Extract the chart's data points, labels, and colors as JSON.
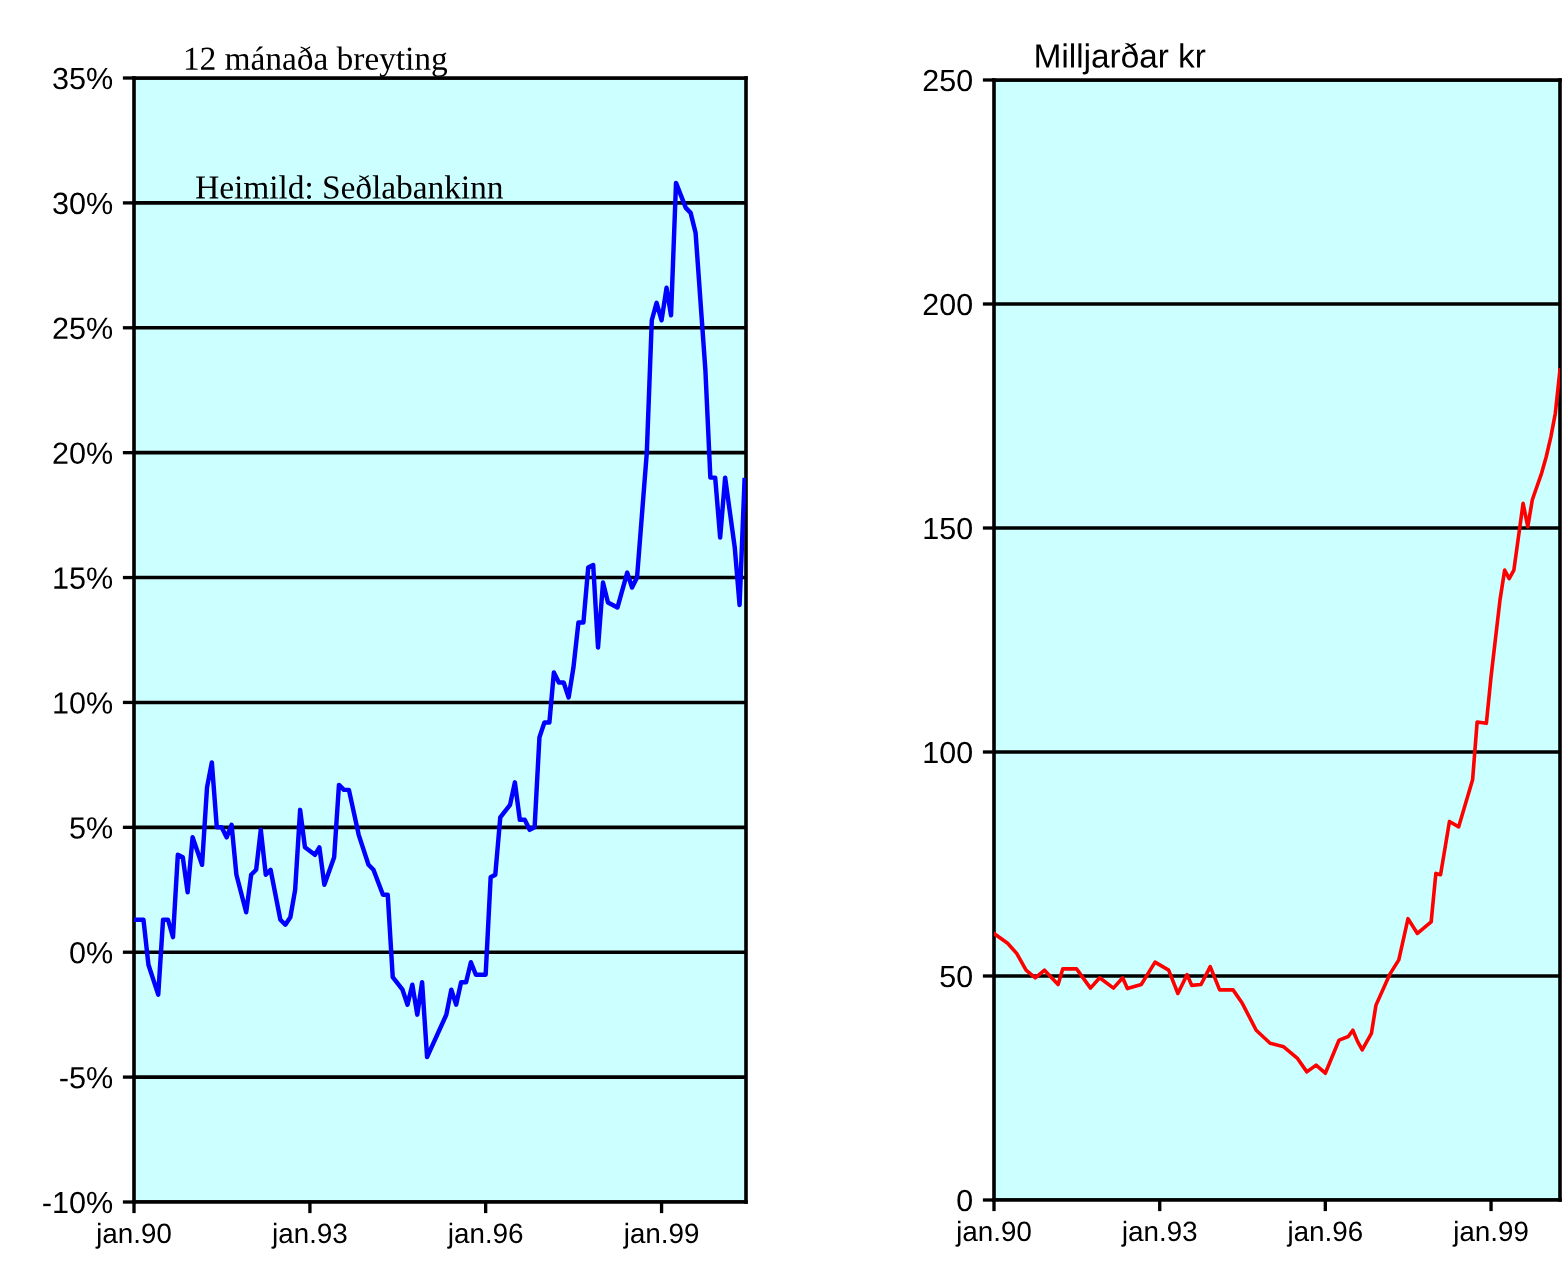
{
  "chart_data": [
    {
      "type": "line",
      "title": "12 mánaða breyting",
      "annotations": [
        "Heimild: Seðlabankinn"
      ],
      "grid": "y",
      "xlim": [
        "1990-01",
        "2000-06-10"
      ],
      "ylim": [
        -10,
        35
      ],
      "xticks": [
        {
          "value": "1990-01",
          "label": "jan.90"
        },
        {
          "value": "1993-01",
          "label": "jan.93"
        },
        {
          "value": "1996-01",
          "label": "jan.96"
        },
        {
          "value": "1999-01",
          "label": "jan.99"
        }
      ],
      "yticks": [
        {
          "value": -10,
          "label": "-10%"
        },
        {
          "value": -5,
          "label": "-5%"
        },
        {
          "value": 0,
          "label": "0%"
        },
        {
          "value": 5,
          "label": "5%"
        },
        {
          "value": 10,
          "label": "10%"
        },
        {
          "value": 15,
          "label": "15%"
        },
        {
          "value": 20,
          "label": "20%"
        },
        {
          "value": 25,
          "label": "25%"
        },
        {
          "value": 30,
          "label": "30%"
        },
        {
          "value": 35,
          "label": "35%"
        }
      ],
      "series": [
        {
          "color": "#0000ff",
          "x": [
            "1990-01",
            "1990-03",
            "1990-04",
            "1990-06",
            "1990-07",
            "1990-08",
            "1990-09",
            "1990-10",
            "1990-11",
            "1990-12",
            "1991-01",
            "1991-03",
            "1991-04",
            "1991-05",
            "1991-06",
            "1991-07",
            "1991-08",
            "1991-09",
            "1991-10",
            "1991-12",
            "1992-01",
            "1992-02",
            "1992-03",
            "1992-04",
            "1992-05",
            "1992-07",
            "1992-08",
            "1992-09",
            "1992-10",
            "1992-11",
            "1992-12",
            "1993-02",
            "1993-03",
            "1993-04",
            "1993-06",
            "1993-07",
            "1993-08",
            "1993-09",
            "1993-11",
            "1994-01",
            "1994-02",
            "1994-04",
            "1994-05",
            "1994-06",
            "1994-08",
            "1994-09",
            "1994-10",
            "1994-11",
            "1994-12",
            "1995-01",
            "1995-05",
            "1995-06",
            "1995-07",
            "1995-08",
            "1995-09",
            "1995-10",
            "1995-11",
            "1996-01",
            "1996-02",
            "1996-03",
            "1996-04",
            "1996-06",
            "1996-07",
            "1996-08",
            "1996-09",
            "1996-10",
            "1996-11",
            "1996-12",
            "1997-01",
            "1997-02",
            "1997-03",
            "1997-04",
            "1997-05",
            "1997-06",
            "1997-07",
            "1997-08",
            "1997-09",
            "1997-10",
            "1997-11",
            "1997-12",
            "1998-01",
            "1998-02",
            "1998-04",
            "1998-06",
            "1998-07",
            "1998-08",
            "1998-10",
            "1998-11",
            "1998-12",
            "1999-01",
            "1999-02",
            "1999-03",
            "1999-04",
            "1999-06",
            "1999-07",
            "1999-08",
            "1999-10",
            "1999-11",
            "1999-12",
            "2000-01",
            "2000-02",
            "2000-04",
            "2000-05",
            "2000-06"
          ],
          "values": [
            1.3,
            1.3,
            -0.5,
            -1.7,
            1.3,
            1.3,
            0.6,
            3.9,
            3.8,
            2.4,
            4.6,
            3.5,
            6.6,
            7.6,
            5.0,
            5.0,
            4.6,
            5.1,
            3.1,
            1.6,
            3.1,
            3.3,
            4.9,
            3.1,
            3.3,
            1.3,
            1.1,
            1.4,
            2.5,
            5.7,
            4.2,
            3.9,
            4.2,
            2.7,
            3.8,
            6.7,
            6.5,
            6.5,
            4.7,
            3.5,
            3.3,
            2.3,
            2.3,
            -1.0,
            -1.5,
            -2.1,
            -1.3,
            -2.5,
            -1.2,
            -4.2,
            -2.5,
            -1.5,
            -2.1,
            -1.2,
            -1.2,
            -0.4,
            -0.9,
            -0.9,
            3.0,
            3.1,
            5.4,
            5.9,
            6.8,
            5.3,
            5.3,
            4.9,
            5.0,
            8.6,
            9.2,
            9.2,
            11.2,
            10.8,
            10.8,
            10.2,
            11.4,
            13.2,
            13.2,
            15.4,
            15.5,
            12.2,
            14.8,
            14.0,
            13.8,
            15.2,
            14.6,
            15.0,
            20.0,
            25.3,
            26.0,
            25.3,
            26.6,
            25.5,
            30.8,
            29.8,
            29.6,
            28.8,
            23.3,
            19.0,
            19.0,
            16.6,
            19.0,
            16.2,
            13.9,
            18.9
          ]
        }
      ]
    },
    {
      "type": "line",
      "ylabel": "Milljarðar kr",
      "grid": "y",
      "xlim": [
        "1990-01",
        "2000-04"
      ],
      "ylim": [
        0,
        250
      ],
      "xticks": [
        {
          "value": "1990-01",
          "label": "jan.90"
        },
        {
          "value": "1993-01",
          "label": "jan.93"
        },
        {
          "value": "1996-01",
          "label": "jan.96"
        },
        {
          "value": "1999-01",
          "label": "jan.99"
        }
      ],
      "yticks": [
        0,
        50,
        100,
        150,
        200,
        250
      ],
      "series": [
        {
          "color": "#ff0000",
          "x": [
            "1990-01",
            "1990-04",
            "1990-06",
            "1990-08",
            "1990-10",
            "1990-12",
            "1991-03",
            "1991-04",
            "1991-07",
            "1991-10",
            "1991-12",
            "1992-03",
            "1992-05",
            "1992-06",
            "1992-09",
            "1992-12",
            "1993-03",
            "1993-05",
            "1993-07",
            "1993-08",
            "1993-10",
            "1993-12",
            "1994-02",
            "1994-05",
            "1994-07",
            "1994-10",
            "1995-01",
            "1995-04",
            "1995-07",
            "1995-09",
            "1995-11",
            "1996-01",
            "1996-04",
            "1996-06",
            "1996-07",
            "1996-08",
            "1996-09",
            "1996-11",
            "1996-12",
            "1997-03",
            "1997-05",
            "1997-07",
            "1997-09",
            "1997-12",
            "1998-01",
            "1998-02",
            "1998-04",
            "1998-06",
            "1998-09",
            "1998-10",
            "1998-12",
            "1999-01",
            "1999-03",
            "1999-04",
            "1999-05",
            "1999-06",
            "1999-08",
            "1999-09",
            "1999-10",
            "1999-12",
            "2000-01",
            "2000-02",
            "2000-03",
            "2000-04"
          ],
          "values": [
            59.5,
            57.3,
            55.0,
            51.3,
            49.6,
            51.3,
            48.1,
            51.6,
            51.6,
            47.3,
            49.6,
            47.3,
            49.6,
            47.2,
            48.1,
            53.1,
            51.3,
            46.1,
            50.3,
            47.9,
            48.1,
            52.1,
            46.9,
            46.9,
            43.9,
            37.9,
            35.0,
            34.2,
            31.6,
            28.6,
            30.1,
            28.3,
            35.7,
            36.5,
            37.9,
            35.4,
            33.5,
            37.2,
            43.5,
            50.3,
            53.6,
            62.8,
            59.5,
            62.1,
            72.9,
            72.6,
            84.5,
            83.3,
            93.8,
            106.7,
            106.4,
            116.8,
            133.9,
            140.6,
            138.7,
            140.6,
            155.5,
            150.3,
            156.3,
            162.2,
            165.9,
            170.4,
            175.6,
            185.3
          ]
        }
      ]
    }
  ]
}
